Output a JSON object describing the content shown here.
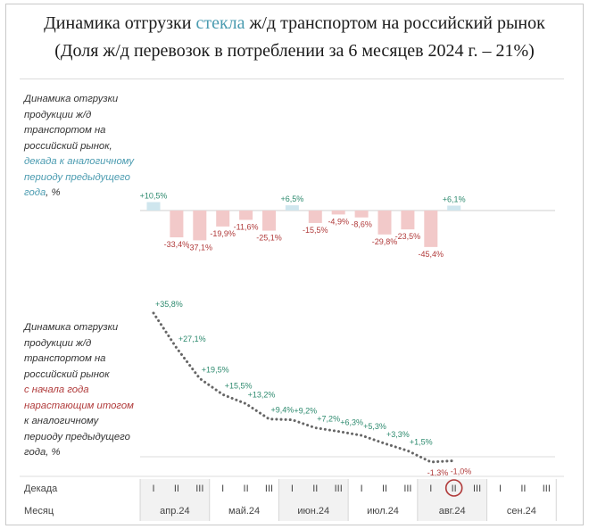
{
  "title": {
    "line1_pre": "Динамика отгрузки ",
    "line1_accent": "стекла",
    "line1_post": " ж/д транспортом на российский рынок",
    "line2": "(Доля ж/д перевозок в потреблении за 6 месяцев 2024 г. – 21%)"
  },
  "top_note": {
    "line1": "Динамика отгрузки",
    "line2": "продукции ж/д",
    "line3": "транспортом на",
    "line4": "российский рынок,",
    "line5_teal": "декада к аналогичному",
    "line6_teal": "периоду предыдущего",
    "line7_teal": "года",
    "line7_post": ", %"
  },
  "bottom_note": {
    "line1": "Динамика отгрузки",
    "line2": "продукции ж/д",
    "line3": "транспортом на",
    "line4": "российский рынок",
    "line5_red": "с начала года",
    "line6_red": "нарастающим итогом",
    "line7": "к аналогичному",
    "line8": "периоду предыдущего",
    "line9": "года, %"
  },
  "axis": {
    "decade_label": "Декада",
    "month_label": "Месяц",
    "decade_marks": [
      "I",
      "II",
      "III"
    ]
  },
  "colors": {
    "positive_bar": "#cfe6ee",
    "negative_bar": "#f2c9c9",
    "positive_text": "#2d8a6e",
    "negative_text": "#b03a3a",
    "line_dots": "#666666",
    "month_band_a": "#f2f2f2",
    "month_band_b": "#ffffff",
    "highlight_circle": "#b03a3a"
  },
  "chart_data": [
    {
      "type": "bar",
      "categories": [
        "апр.24 I",
        "апр.24 II",
        "апр.24 III",
        "май.24 I",
        "май.24 II",
        "май.24 III",
        "июн.24 I",
        "июн.24 II",
        "июн.24 III",
        "июл.24 I",
        "июл.24 II",
        "июл.24 III",
        "авг.24 I",
        "авг.24 II"
      ],
      "values": [
        10.5,
        -33.4,
        -37.1,
        -19.9,
        -11.6,
        -25.1,
        6.5,
        -15.5,
        -4.9,
        -8.6,
        -29.8,
        -23.5,
        -45.4,
        6.1
      ],
      "labels": [
        "+10,5%",
        "-33,4%",
        "-37,1%",
        "-19,9%",
        "-11,6%",
        "-25,1%",
        "+6,5%",
        "-15,5%",
        "-4,9%",
        "-8,6%",
        "-29,8%",
        "-23,5%",
        "-45,4%",
        "+6,1%"
      ]
    },
    {
      "type": "line",
      "categories": [
        "апр.24 I",
        "апр.24 II",
        "апр.24 III",
        "май.24 I",
        "май.24 II",
        "май.24 III",
        "июн.24 I",
        "июн.24 II",
        "июн.24 III",
        "июл.24 I",
        "июл.24 II",
        "июл.24 III",
        "авг.24 I",
        "авг.24 II"
      ],
      "values": [
        35.8,
        27.1,
        19.5,
        15.5,
        13.2,
        9.4,
        9.2,
        7.2,
        6.3,
        5.3,
        3.3,
        1.5,
        -1.3,
        -1.0
      ],
      "labels": [
        "+35,8%",
        "+27,1%",
        "+19,5%",
        "+15,5%",
        "+13,2%",
        "+9,4%",
        "+9,2%",
        "+7,2%",
        "+6,3%",
        "+5,3%",
        "+3,3%",
        "+1,5%",
        "-1,3%",
        "-1,0%"
      ]
    }
  ],
  "months": [
    "апр.24",
    "май.24",
    "июн.24",
    "июл.24",
    "авг.24",
    "сен.24"
  ]
}
